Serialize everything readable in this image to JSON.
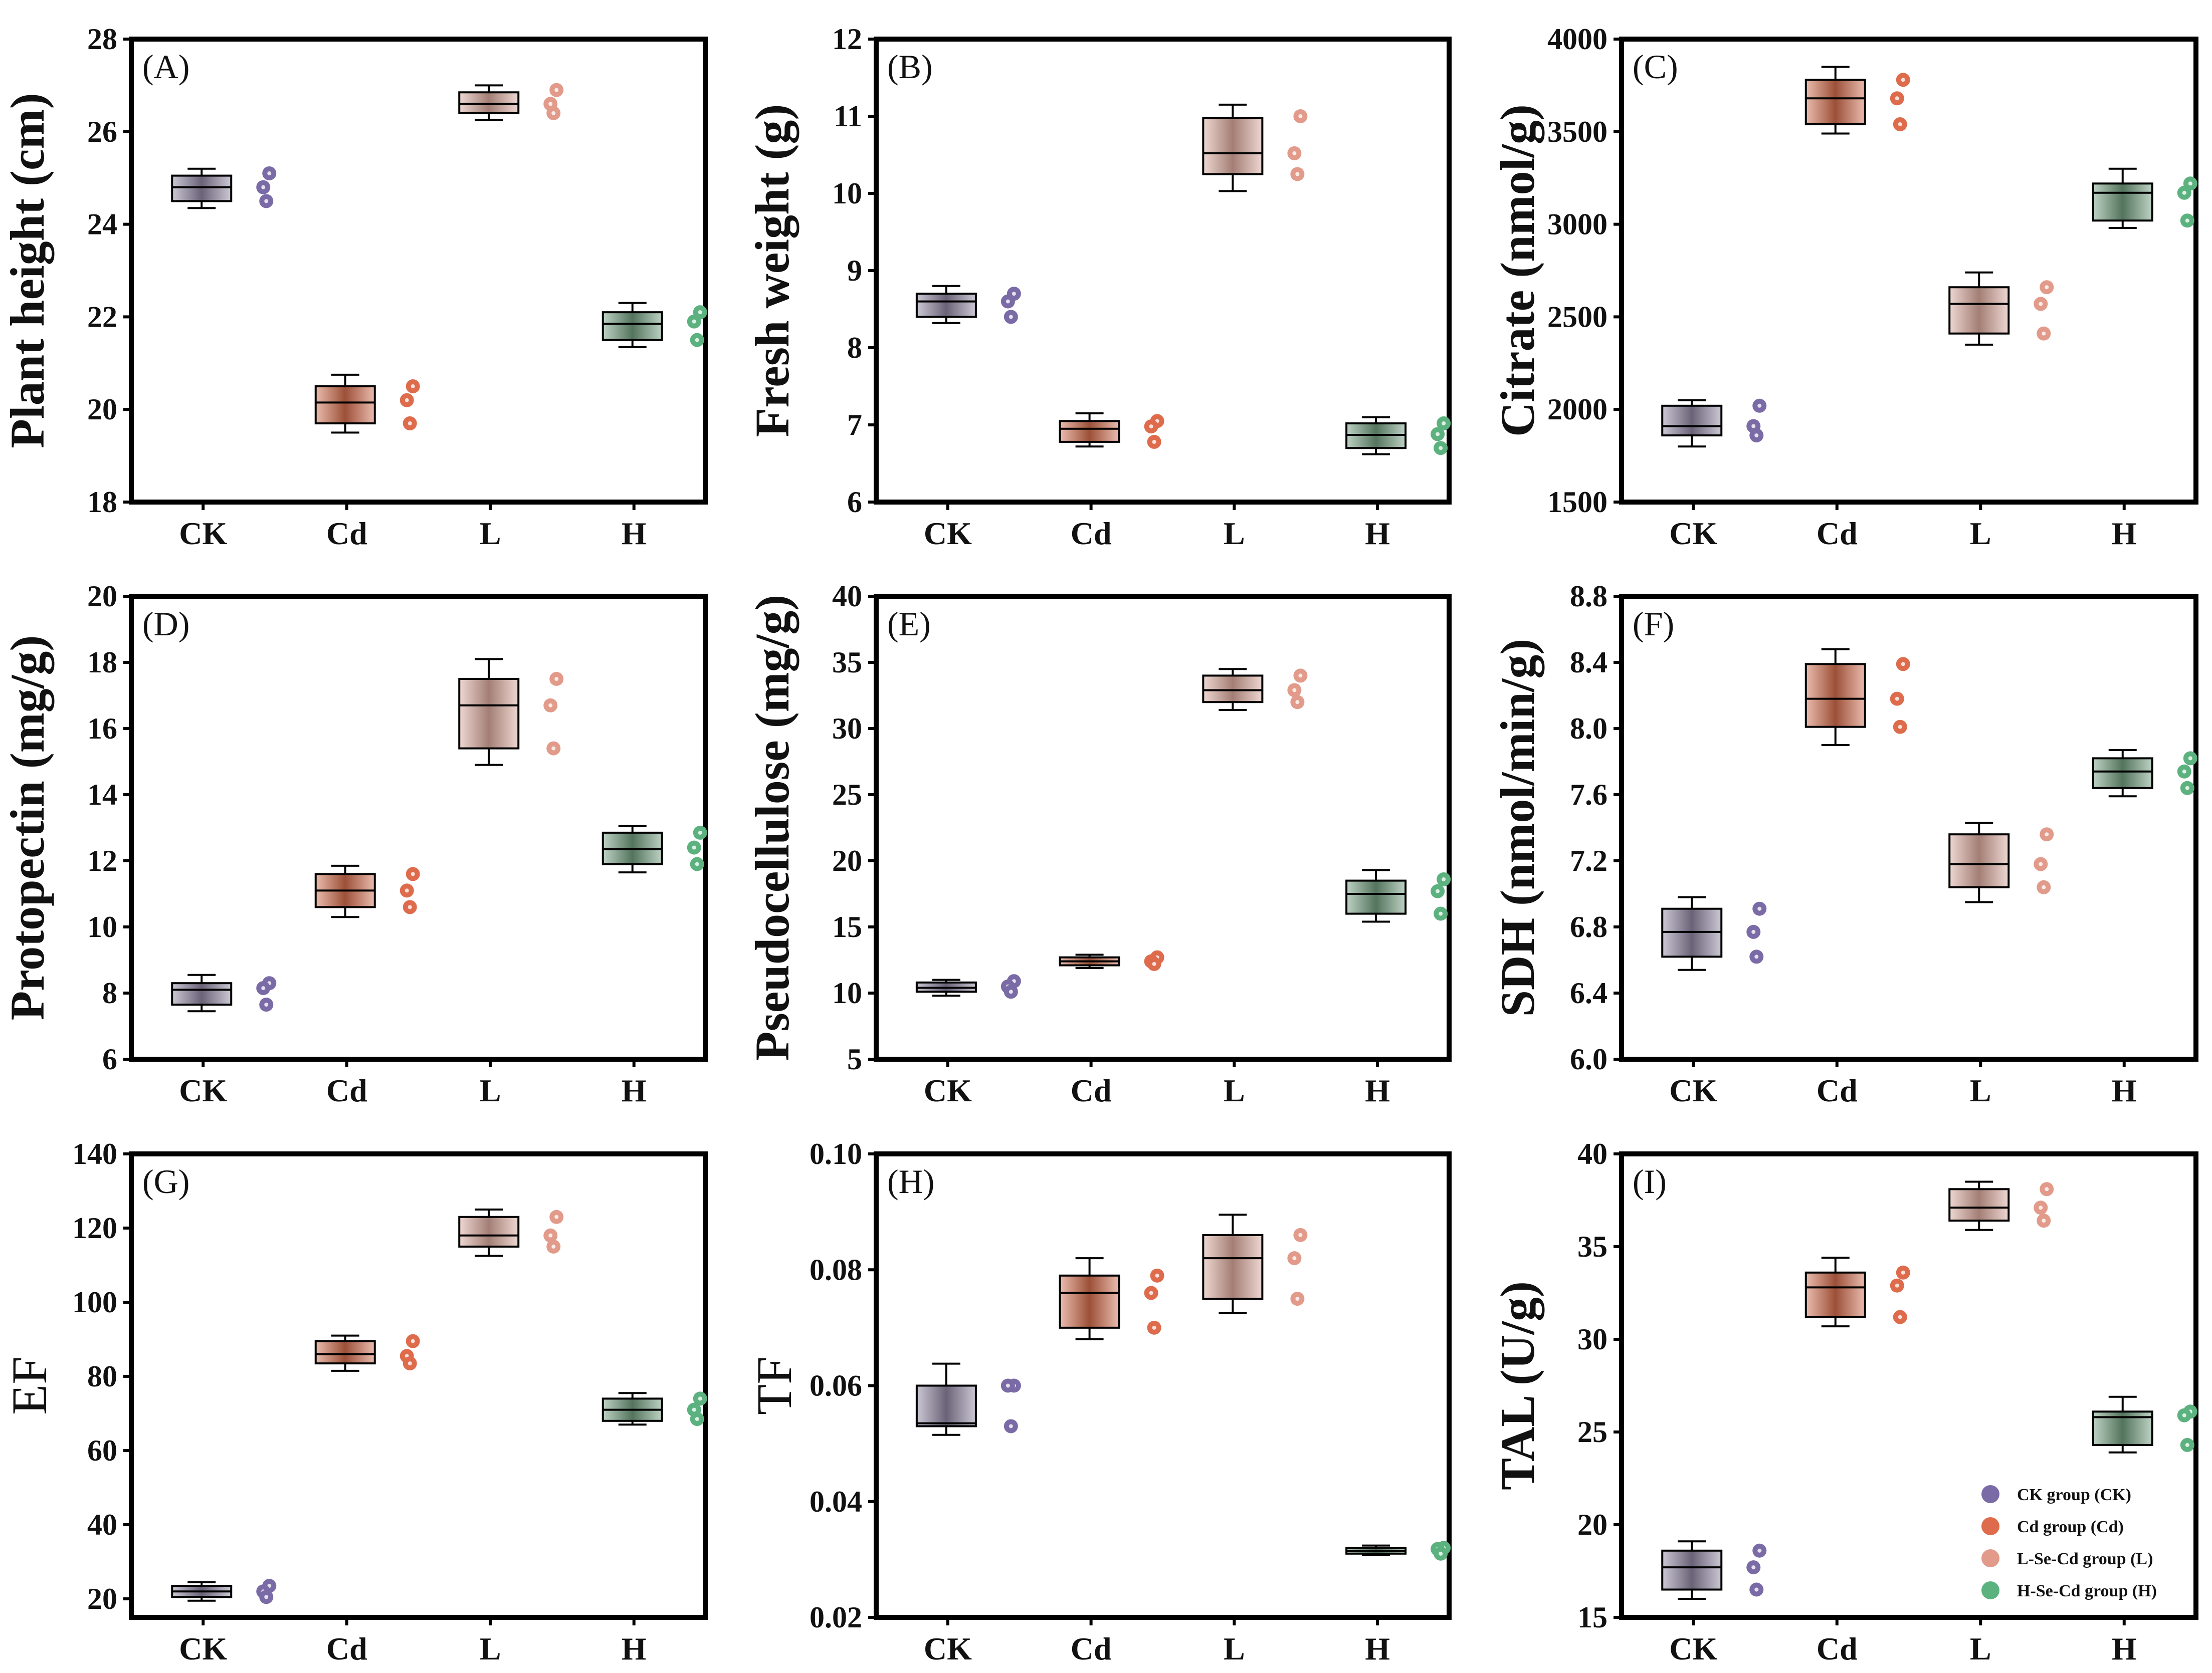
{
  "colors": {
    "CK": "#7a6aa6",
    "Cd": "#de6c4c",
    "L": "#e29a8a",
    "H": "#5cb27f",
    "box_CK": "#8d84a0",
    "box_Cd": "#d06a4a",
    "box_L": "#d9a89c",
    "box_H": "#6f9a7c"
  },
  "legend": [
    {
      "key": "CK",
      "label": "CK group (CK)"
    },
    {
      "key": "Cd",
      "label": "Cd group (Cd)"
    },
    {
      "key": "L",
      "label": "L-Se-Cd group (L)"
    },
    {
      "key": "H",
      "label": "H-Se-Cd group (H)"
    }
  ],
  "chart_data": [
    {
      "type": "box",
      "panel": "(A)",
      "ylabel": "Plant height (cm)",
      "ylabel_bold": true,
      "ylim": [
        18,
        28
      ],
      "yticks": [
        "18",
        "20",
        "22",
        "24",
        "26",
        "28"
      ],
      "categories": [
        "CK",
        "Cd",
        "L",
        "H"
      ],
      "boxes": [
        {
          "group": "CK",
          "whisker_low": 24.35,
          "q1": 24.5,
          "median": 24.8,
          "q3": 25.05,
          "whisker_high": 25.2,
          "points": [
            25.1,
            24.8,
            24.5
          ]
        },
        {
          "group": "Cd",
          "whisker_low": 19.5,
          "q1": 19.7,
          "median": 20.15,
          "q3": 20.5,
          "whisker_high": 20.75,
          "points": [
            20.5,
            20.2,
            19.7
          ]
        },
        {
          "group": "L",
          "whisker_low": 26.25,
          "q1": 26.4,
          "median": 26.6,
          "q3": 26.85,
          "whisker_high": 27.0,
          "points": [
            26.9,
            26.6,
            26.4
          ]
        },
        {
          "group": "H",
          "whisker_low": 21.35,
          "q1": 21.5,
          "median": 21.85,
          "q3": 22.1,
          "whisker_high": 22.3,
          "points": [
            22.1,
            21.9,
            21.5
          ]
        }
      ]
    },
    {
      "type": "box",
      "panel": "(B)",
      "ylabel": "Fresh weight (g)",
      "ylabel_bold": true,
      "ylim": [
        6,
        12
      ],
      "yticks": [
        "6",
        "7",
        "8",
        "9",
        "10",
        "11",
        "12"
      ],
      "categories": [
        "CK",
        "Cd",
        "L",
        "H"
      ],
      "boxes": [
        {
          "group": "CK",
          "whisker_low": 8.32,
          "q1": 8.4,
          "median": 8.6,
          "q3": 8.7,
          "whisker_high": 8.8,
          "points": [
            8.7,
            8.6,
            8.4
          ]
        },
        {
          "group": "Cd",
          "whisker_low": 6.72,
          "q1": 6.78,
          "median": 6.95,
          "q3": 7.05,
          "whisker_high": 7.15,
          "points": [
            7.05,
            6.98,
            6.78
          ]
        },
        {
          "group": "L",
          "whisker_low": 10.03,
          "q1": 10.25,
          "median": 10.52,
          "q3": 10.98,
          "whisker_high": 11.15,
          "points": [
            11.0,
            10.52,
            10.25
          ]
        },
        {
          "group": "H",
          "whisker_low": 6.62,
          "q1": 6.7,
          "median": 6.87,
          "q3": 7.02,
          "whisker_high": 7.1,
          "points": [
            7.02,
            6.88,
            6.7
          ]
        }
      ]
    },
    {
      "type": "box",
      "panel": "(C)",
      "ylabel": "Citrate (nmol/g)",
      "ylabel_bold": true,
      "ylim": [
        1500,
        4000
      ],
      "yticks": [
        "1500",
        "2000",
        "2500",
        "3000",
        "3500",
        "4000"
      ],
      "categories": [
        "CK",
        "Cd",
        "L",
        "H"
      ],
      "boxes": [
        {
          "group": "CK",
          "whisker_low": 1800,
          "q1": 1860,
          "median": 1910,
          "q3": 2020,
          "whisker_high": 2050,
          "points": [
            2020,
            1910,
            1860
          ]
        },
        {
          "group": "Cd",
          "whisker_low": 3490,
          "q1": 3540,
          "median": 3680,
          "q3": 3780,
          "whisker_high": 3850,
          "points": [
            3780,
            3680,
            3540
          ]
        },
        {
          "group": "L",
          "whisker_low": 2350,
          "q1": 2410,
          "median": 2570,
          "q3": 2660,
          "whisker_high": 2740,
          "points": [
            2660,
            2570,
            2410
          ]
        },
        {
          "group": "H",
          "whisker_low": 2980,
          "q1": 3020,
          "median": 3170,
          "q3": 3220,
          "whisker_high": 3300,
          "points": [
            3220,
            3170,
            3020
          ]
        }
      ]
    },
    {
      "type": "box",
      "panel": "(D)",
      "ylabel": "Protopectin (mg/g)",
      "ylabel_bold": true,
      "ylim": [
        6,
        20
      ],
      "yticks": [
        "6",
        "8",
        "10",
        "12",
        "14",
        "16",
        "18",
        "20"
      ],
      "categories": [
        "CK",
        "Cd",
        "L",
        "H"
      ],
      "boxes": [
        {
          "group": "CK",
          "whisker_low": 7.45,
          "q1": 7.65,
          "median": 8.1,
          "q3": 8.3,
          "whisker_high": 8.55,
          "points": [
            8.3,
            8.15,
            7.65
          ]
        },
        {
          "group": "Cd",
          "whisker_low": 10.3,
          "q1": 10.6,
          "median": 11.1,
          "q3": 11.6,
          "whisker_high": 11.85,
          "points": [
            11.6,
            11.1,
            10.6
          ]
        },
        {
          "group": "L",
          "whisker_low": 14.9,
          "q1": 15.4,
          "median": 16.7,
          "q3": 17.5,
          "whisker_high": 18.1,
          "points": [
            17.5,
            16.7,
            15.4
          ]
        },
        {
          "group": "H",
          "whisker_low": 11.65,
          "q1": 11.9,
          "median": 12.35,
          "q3": 12.85,
          "whisker_high": 13.05,
          "points": [
            12.85,
            12.4,
            11.9
          ]
        }
      ]
    },
    {
      "type": "box",
      "panel": "(E)",
      "ylabel": "Pseudocellulose (mg/g)",
      "ylabel_bold": true,
      "ylim": [
        5,
        40
      ],
      "yticks": [
        "5",
        "10",
        "15",
        "20",
        "25",
        "30",
        "35",
        "40"
      ],
      "categories": [
        "CK",
        "Cd",
        "L",
        "H"
      ],
      "boxes": [
        {
          "group": "CK",
          "whisker_low": 9.8,
          "q1": 10.1,
          "median": 10.4,
          "q3": 10.8,
          "whisker_high": 11.0,
          "points": [
            10.9,
            10.5,
            10.1
          ]
        },
        {
          "group": "Cd",
          "whisker_low": 11.9,
          "q1": 12.1,
          "median": 12.4,
          "q3": 12.7,
          "whisker_high": 12.9,
          "points": [
            12.7,
            12.4,
            12.2
          ]
        },
        {
          "group": "L",
          "whisker_low": 31.4,
          "q1": 32.0,
          "median": 32.9,
          "q3": 34.0,
          "whisker_high": 34.5,
          "points": [
            34.0,
            32.9,
            32.0
          ]
        },
        {
          "group": "H",
          "whisker_low": 15.4,
          "q1": 16.0,
          "median": 17.5,
          "q3": 18.5,
          "whisker_high": 19.3,
          "points": [
            18.6,
            17.7,
            16.0
          ]
        }
      ]
    },
    {
      "type": "box",
      "panel": "(F)",
      "ylabel": "SDH (nmol/min/g)",
      "ylabel_bold": true,
      "ylim": [
        6.0,
        8.8
      ],
      "yticks": [
        "6.0",
        "6.4",
        "6.8",
        "7.2",
        "7.6",
        "8.0",
        "8.4",
        "8.8"
      ],
      "categories": [
        "CK",
        "Cd",
        "L",
        "H"
      ],
      "boxes": [
        {
          "group": "CK",
          "whisker_low": 6.54,
          "q1": 6.62,
          "median": 6.77,
          "q3": 6.91,
          "whisker_high": 6.98,
          "points": [
            6.91,
            6.77,
            6.62
          ]
        },
        {
          "group": "Cd",
          "whisker_low": 7.9,
          "q1": 8.01,
          "median": 8.18,
          "q3": 8.39,
          "whisker_high": 8.48,
          "points": [
            8.39,
            8.18,
            8.01
          ]
        },
        {
          "group": "L",
          "whisker_low": 6.95,
          "q1": 7.04,
          "median": 7.18,
          "q3": 7.36,
          "whisker_high": 7.43,
          "points": [
            7.36,
            7.18,
            7.04
          ]
        },
        {
          "group": "H",
          "whisker_low": 7.59,
          "q1": 7.64,
          "median": 7.74,
          "q3": 7.82,
          "whisker_high": 7.87,
          "points": [
            7.82,
            7.74,
            7.64
          ]
        }
      ]
    },
    {
      "type": "box",
      "panel": "(G)",
      "ylabel": "EF",
      "ylabel_bold": false,
      "ylim": [
        15,
        140
      ],
      "yticks": [
        "20",
        "40",
        "60",
        "80",
        "100",
        "120",
        "140"
      ],
      "categories": [
        "CK",
        "Cd",
        "L",
        "H"
      ],
      "boxes": [
        {
          "group": "CK",
          "whisker_low": 19.5,
          "q1": 20.5,
          "median": 22.0,
          "q3": 23.5,
          "whisker_high": 24.5,
          "points": [
            23.5,
            22.0,
            20.5
          ]
        },
        {
          "group": "Cd",
          "whisker_low": 81.5,
          "q1": 83.5,
          "median": 86.0,
          "q3": 89.5,
          "whisker_high": 91.0,
          "points": [
            89.5,
            85.5,
            83.5
          ]
        },
        {
          "group": "L",
          "whisker_low": 112.5,
          "q1": 115.0,
          "median": 118.0,
          "q3": 123.0,
          "whisker_high": 125.0,
          "points": [
            123.0,
            118.0,
            115.0
          ]
        },
        {
          "group": "H",
          "whisker_low": 67.0,
          "q1": 68.0,
          "median": 71.0,
          "q3": 74.0,
          "whisker_high": 75.5,
          "points": [
            74.0,
            71.0,
            68.5
          ]
        }
      ]
    },
    {
      "type": "box",
      "panel": "(H)",
      "ylabel": "TF",
      "ylabel_bold": false,
      "ylim": [
        0.02,
        0.1
      ],
      "yticks": [
        "0.02",
        "0.04",
        "0.06",
        "0.08",
        "0.10"
      ],
      "categories": [
        "CK",
        "Cd",
        "L",
        "H"
      ],
      "boxes": [
        {
          "group": "CK",
          "whisker_low": 0.0515,
          "q1": 0.053,
          "median": 0.0535,
          "q3": 0.06,
          "whisker_high": 0.0638,
          "points": [
            0.06,
            0.06,
            0.053
          ]
        },
        {
          "group": "Cd",
          "whisker_low": 0.068,
          "q1": 0.07,
          "median": 0.076,
          "q3": 0.079,
          "whisker_high": 0.082,
          "points": [
            0.079,
            0.076,
            0.07
          ]
        },
        {
          "group": "L",
          "whisker_low": 0.0725,
          "q1": 0.075,
          "median": 0.082,
          "q3": 0.086,
          "whisker_high": 0.0895,
          "points": [
            0.086,
            0.082,
            0.075
          ]
        },
        {
          "group": "H",
          "whisker_low": 0.0308,
          "q1": 0.031,
          "median": 0.0315,
          "q3": 0.032,
          "whisker_high": 0.0324,
          "points": [
            0.032,
            0.0318,
            0.031
          ]
        }
      ]
    },
    {
      "type": "box",
      "panel": "(I)",
      "ylabel": "TAL (U/g)",
      "ylabel_bold": true,
      "ylim": [
        15,
        40
      ],
      "yticks": [
        "15",
        "20",
        "25",
        "30",
        "35",
        "40"
      ],
      "categories": [
        "CK",
        "Cd",
        "L",
        "H"
      ],
      "boxes": [
        {
          "group": "CK",
          "whisker_low": 16.0,
          "q1": 16.5,
          "median": 17.7,
          "q3": 18.6,
          "whisker_high": 19.1,
          "points": [
            18.6,
            17.7,
            16.5
          ]
        },
        {
          "group": "Cd",
          "whisker_low": 30.7,
          "q1": 31.2,
          "median": 32.8,
          "q3": 33.6,
          "whisker_high": 34.4,
          "points": [
            33.6,
            32.9,
            31.2
          ]
        },
        {
          "group": "L",
          "whisker_low": 35.9,
          "q1": 36.4,
          "median": 37.1,
          "q3": 38.1,
          "whisker_high": 38.5,
          "points": [
            38.1,
            37.1,
            36.4
          ]
        },
        {
          "group": "H",
          "whisker_low": 23.9,
          "q1": 24.3,
          "median": 25.8,
          "q3": 26.1,
          "whisker_high": 26.9,
          "points": [
            26.1,
            25.9,
            24.3
          ]
        }
      ]
    }
  ]
}
